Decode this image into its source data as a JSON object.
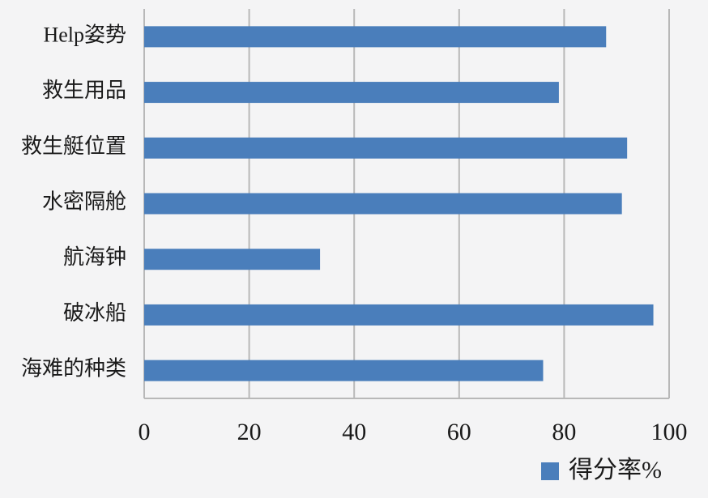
{
  "chart_data": {
    "type": "bar",
    "orientation": "horizontal",
    "categories": [
      "Help姿势",
      "救生用品",
      "救生艇位置",
      "水密隔舱",
      "航海钟",
      "破冰船",
      "海难的种类"
    ],
    "series": [
      {
        "name": "得分率%",
        "color": "#4a7ebb",
        "values": [
          88,
          79,
          92,
          91,
          33.5,
          97,
          76
        ]
      }
    ],
    "xlim": [
      0,
      100
    ],
    "xticks": [
      0,
      20,
      40,
      60,
      80,
      100
    ],
    "grid": true,
    "legend": "bottom-right"
  }
}
